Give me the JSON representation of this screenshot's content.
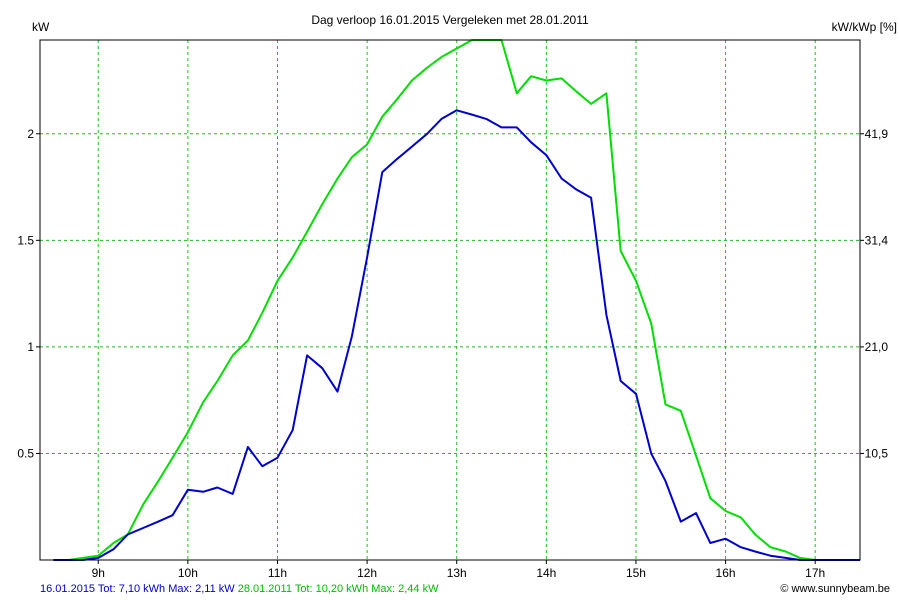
{
  "chart_data": {
    "type": "line",
    "title": "Dag  verloop 16.01.2015   Vergeleken met 28.01.2011",
    "ylabel_left": "kW",
    "ylabel_right": "kW/kWp [%]",
    "x_ticks": [
      "9h",
      "10h",
      "11h",
      "12h",
      "13h",
      "14h",
      "15h",
      "16h",
      "17h"
    ],
    "x_tick_values": [
      9,
      10,
      11,
      12,
      13,
      14,
      15,
      16,
      17
    ],
    "xlim": [
      8.35,
      17.5
    ],
    "y_ticks": [
      "0.5",
      "1",
      "1.5",
      "2"
    ],
    "y_tick_values": [
      0.5,
      1,
      1.5,
      2
    ],
    "y_right_ticks": [
      "10,5",
      "21,0",
      "31,4",
      "41,9"
    ],
    "ylim": [
      0,
      2.44
    ],
    "grid": true,
    "series": [
      {
        "name": "16.01.2015",
        "color": "#0000cc",
        "x": [
          8.5,
          8.83,
          9.0,
          9.17,
          9.33,
          9.5,
          9.67,
          9.83,
          10.0,
          10.17,
          10.33,
          10.5,
          10.67,
          10.83,
          11.0,
          11.17,
          11.33,
          11.5,
          11.67,
          11.83,
          12.0,
          12.17,
          12.33,
          12.5,
          12.67,
          12.83,
          13.0,
          13.17,
          13.33,
          13.5,
          13.67,
          13.83,
          14.0,
          14.17,
          14.33,
          14.5,
          14.67,
          14.83,
          15.0,
          15.17,
          15.33,
          15.5,
          15.67,
          15.83,
          16.0,
          16.17,
          16.33,
          16.5,
          16.67,
          16.83,
          17.0,
          17.17,
          17.5
        ],
        "y": [
          0.0,
          0.0,
          0.01,
          0.05,
          0.12,
          0.15,
          0.18,
          0.21,
          0.33,
          0.32,
          0.34,
          0.31,
          0.53,
          0.44,
          0.48,
          0.61,
          0.96,
          0.9,
          0.79,
          1.05,
          1.42,
          1.82,
          1.88,
          1.94,
          2.0,
          2.07,
          2.11,
          2.09,
          2.07,
          2.03,
          2.03,
          1.96,
          1.9,
          1.79,
          1.74,
          1.7,
          1.15,
          0.84,
          0.78,
          0.5,
          0.37,
          0.18,
          0.22,
          0.08,
          0.1,
          0.06,
          0.04,
          0.02,
          0.01,
          0.0,
          0.0,
          0.0,
          0.0
        ]
      },
      {
        "name": "28.01.2011",
        "color": "#00dd00",
        "x": [
          8.5,
          8.67,
          8.83,
          9.0,
          9.17,
          9.33,
          9.5,
          9.67,
          9.83,
          10.0,
          10.17,
          10.33,
          10.5,
          10.67,
          10.83,
          11.0,
          11.17,
          11.33,
          11.5,
          11.67,
          11.83,
          12.0,
          12.17,
          12.33,
          12.5,
          12.67,
          12.83,
          13.0,
          13.17,
          13.33,
          13.5,
          13.67,
          13.83,
          14.0,
          14.17,
          14.33,
          14.5,
          14.67,
          14.83,
          15.0,
          15.17,
          15.33,
          15.5,
          15.67,
          15.83,
          16.0,
          16.17,
          16.33,
          16.5,
          16.67,
          16.83,
          17.0,
          17.17,
          17.5
        ],
        "y": [
          0.0,
          0.0,
          0.01,
          0.02,
          0.08,
          0.12,
          0.26,
          0.37,
          0.48,
          0.6,
          0.74,
          0.84,
          0.96,
          1.03,
          1.16,
          1.31,
          1.42,
          1.54,
          1.67,
          1.79,
          1.89,
          1.95,
          2.08,
          2.16,
          2.25,
          2.31,
          2.36,
          2.4,
          2.44,
          2.44,
          2.44,
          2.19,
          2.27,
          2.25,
          2.26,
          2.2,
          2.14,
          2.19,
          1.45,
          1.31,
          1.11,
          0.73,
          0.7,
          0.49,
          0.29,
          0.23,
          0.2,
          0.12,
          0.06,
          0.04,
          0.01,
          0.0,
          0.0,
          0.0
        ]
      }
    ]
  },
  "footer": {
    "series1_text": "16.01.2015 Tot: 7,10 kWh Max: 2,11 kW",
    "series2_text": "28.01.2011 Tot: 10,20 kWh Max: 2,44 kW",
    "credit_text": "© www.sunnybeam.be"
  }
}
